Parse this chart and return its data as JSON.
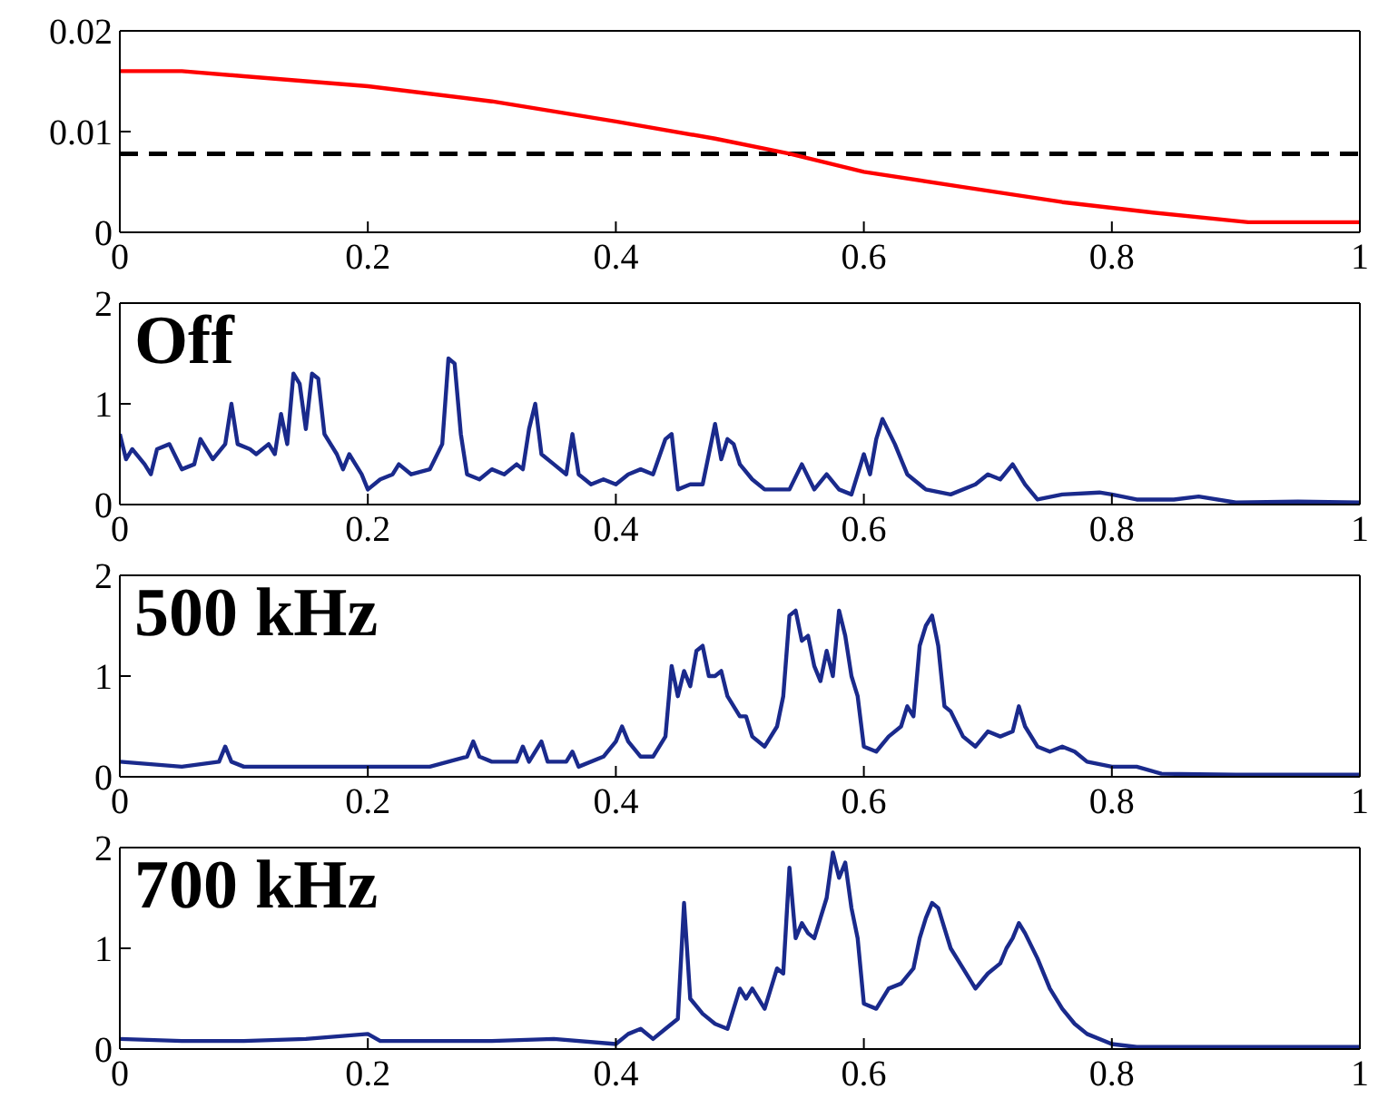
{
  "chart_data": [
    {
      "type": "line",
      "x": [
        0,
        0.05,
        0.1,
        0.2,
        0.3,
        0.4,
        0.48,
        0.54,
        0.6,
        0.68,
        0.76,
        0.83,
        0.91,
        1
      ],
      "series": [
        {
          "color": "#ff0000",
          "values": [
            0.016,
            0.016,
            0.0155,
            0.0145,
            0.013,
            0.011,
            0.0093,
            0.0078,
            0.006,
            0.0045,
            0.003,
            0.002,
            0.001,
            0.001
          ]
        }
      ],
      "ref_lines": [
        {
          "axis": "y",
          "value": 0.0078,
          "color": "#000000",
          "line_style": "dashed"
        }
      ],
      "xlim": [
        0,
        1
      ],
      "xticks": [
        0,
        0.2,
        0.4,
        0.6,
        0.8,
        1
      ],
      "ylim": [
        0,
        0.02
      ],
      "yticks": [
        0,
        0.01,
        0.02
      ],
      "grid": false,
      "legend": false,
      "marker": "none",
      "line_style": "solid"
    },
    {
      "type": "line",
      "annotations": [
        "Off"
      ],
      "x": [
        0,
        0.005,
        0.01,
        0.02,
        0.025,
        0.03,
        0.04,
        0.05,
        0.06,
        0.065,
        0.075,
        0.085,
        0.09,
        0.095,
        0.105,
        0.11,
        0.12,
        0.125,
        0.13,
        0.135,
        0.14,
        0.145,
        0.15,
        0.155,
        0.16,
        0.165,
        0.175,
        0.18,
        0.185,
        0.195,
        0.2,
        0.21,
        0.22,
        0.225,
        0.235,
        0.25,
        0.26,
        0.265,
        0.27,
        0.275,
        0.28,
        0.29,
        0.3,
        0.31,
        0.32,
        0.325,
        0.33,
        0.335,
        0.34,
        0.35,
        0.36,
        0.365,
        0.37,
        0.38,
        0.39,
        0.4,
        0.41,
        0.42,
        0.43,
        0.44,
        0.445,
        0.45,
        0.46,
        0.47,
        0.48,
        0.485,
        0.49,
        0.495,
        0.5,
        0.51,
        0.52,
        0.54,
        0.55,
        0.56,
        0.57,
        0.58,
        0.59,
        0.6,
        0.605,
        0.61,
        0.615,
        0.625,
        0.635,
        0.65,
        0.67,
        0.69,
        0.7,
        0.71,
        0.72,
        0.73,
        0.74,
        0.76,
        0.79,
        0.8,
        0.82,
        0.85,
        0.87,
        0.9,
        0.95,
        1
      ],
      "series": [
        {
          "color": "#1a2a8c",
          "values": [
            0.7,
            0.45,
            0.55,
            0.4,
            0.3,
            0.55,
            0.6,
            0.35,
            0.4,
            0.65,
            0.45,
            0.6,
            1.0,
            0.6,
            0.55,
            0.5,
            0.6,
            0.5,
            0.9,
            0.6,
            1.3,
            1.2,
            0.75,
            1.3,
            1.25,
            0.7,
            0.5,
            0.35,
            0.5,
            0.3,
            0.15,
            0.25,
            0.3,
            0.4,
            0.3,
            0.35,
            0.6,
            1.45,
            1.4,
            0.7,
            0.3,
            0.25,
            0.35,
            0.3,
            0.4,
            0.35,
            0.75,
            1.0,
            0.5,
            0.4,
            0.3,
            0.7,
            0.3,
            0.2,
            0.25,
            0.2,
            0.3,
            0.35,
            0.3,
            0.65,
            0.7,
            0.15,
            0.2,
            0.2,
            0.8,
            0.45,
            0.65,
            0.6,
            0.4,
            0.25,
            0.15,
            0.15,
            0.4,
            0.15,
            0.3,
            0.15,
            0.1,
            0.5,
            0.3,
            0.65,
            0.85,
            0.6,
            0.3,
            0.15,
            0.1,
            0.2,
            0.3,
            0.25,
            0.4,
            0.2,
            0.05,
            0.1,
            0.12,
            0.1,
            0.05,
            0.05,
            0.08,
            0.02,
            0.03,
            0.02
          ]
        }
      ],
      "xlim": [
        0,
        1
      ],
      "xticks": [
        0,
        0.2,
        0.4,
        0.6,
        0.8,
        1
      ],
      "ylim": [
        0,
        2
      ],
      "yticks": [
        0,
        1,
        2
      ],
      "grid": false,
      "legend": false,
      "marker": "none",
      "line_style": "solid"
    },
    {
      "type": "line",
      "annotations": [
        "500 kHz"
      ],
      "x": [
        0,
        0.05,
        0.08,
        0.085,
        0.09,
        0.1,
        0.15,
        0.2,
        0.25,
        0.28,
        0.285,
        0.29,
        0.3,
        0.32,
        0.325,
        0.33,
        0.34,
        0.345,
        0.36,
        0.365,
        0.37,
        0.39,
        0.4,
        0.405,
        0.41,
        0.42,
        0.43,
        0.44,
        0.445,
        0.45,
        0.455,
        0.46,
        0.465,
        0.47,
        0.475,
        0.48,
        0.485,
        0.49,
        0.5,
        0.505,
        0.51,
        0.52,
        0.53,
        0.535,
        0.54,
        0.545,
        0.55,
        0.555,
        0.56,
        0.565,
        0.57,
        0.575,
        0.58,
        0.585,
        0.59,
        0.595,
        0.6,
        0.61,
        0.62,
        0.63,
        0.635,
        0.64,
        0.645,
        0.65,
        0.655,
        0.66,
        0.665,
        0.67,
        0.68,
        0.69,
        0.7,
        0.71,
        0.72,
        0.725,
        0.73,
        0.74,
        0.75,
        0.76,
        0.77,
        0.78,
        0.8,
        0.82,
        0.84,
        0.9,
        1
      ],
      "series": [
        {
          "color": "#1a2a8c",
          "values": [
            0.15,
            0.1,
            0.15,
            0.3,
            0.15,
            0.1,
            0.1,
            0.1,
            0.1,
            0.2,
            0.35,
            0.2,
            0.15,
            0.15,
            0.3,
            0.15,
            0.35,
            0.15,
            0.15,
            0.25,
            0.1,
            0.2,
            0.35,
            0.5,
            0.35,
            0.2,
            0.2,
            0.4,
            1.1,
            0.8,
            1.05,
            0.9,
            1.25,
            1.3,
            1.0,
            1.0,
            1.05,
            0.8,
            0.6,
            0.6,
            0.4,
            0.3,
            0.5,
            0.8,
            1.6,
            1.65,
            1.35,
            1.4,
            1.1,
            0.95,
            1.25,
            1.0,
            1.65,
            1.4,
            1.0,
            0.8,
            0.3,
            0.25,
            0.4,
            0.5,
            0.7,
            0.6,
            1.3,
            1.5,
            1.6,
            1.3,
            0.7,
            0.65,
            0.4,
            0.3,
            0.45,
            0.4,
            0.45,
            0.7,
            0.5,
            0.3,
            0.25,
            0.3,
            0.25,
            0.15,
            0.1,
            0.1,
            0.03,
            0.02,
            0.02
          ]
        }
      ],
      "xlim": [
        0,
        1
      ],
      "xticks": [
        0,
        0.2,
        0.4,
        0.6,
        0.8,
        1
      ],
      "ylim": [
        0,
        2
      ],
      "yticks": [
        0,
        1,
        2
      ],
      "grid": false,
      "legend": false,
      "marker": "none",
      "line_style": "solid"
    },
    {
      "type": "line",
      "annotations": [
        "700 kHz"
      ],
      "x": [
        0,
        0.05,
        0.1,
        0.15,
        0.2,
        0.21,
        0.3,
        0.35,
        0.4,
        0.41,
        0.42,
        0.43,
        0.44,
        0.45,
        0.455,
        0.46,
        0.47,
        0.48,
        0.49,
        0.5,
        0.505,
        0.51,
        0.52,
        0.53,
        0.535,
        0.54,
        0.545,
        0.55,
        0.555,
        0.56,
        0.565,
        0.57,
        0.575,
        0.58,
        0.585,
        0.59,
        0.595,
        0.6,
        0.61,
        0.62,
        0.63,
        0.64,
        0.645,
        0.65,
        0.655,
        0.66,
        0.665,
        0.67,
        0.68,
        0.69,
        0.7,
        0.71,
        0.715,
        0.72,
        0.725,
        0.73,
        0.74,
        0.75,
        0.76,
        0.77,
        0.78,
        0.8,
        0.82,
        0.83,
        1
      ],
      "series": [
        {
          "color": "#1a2a8c",
          "values": [
            0.1,
            0.08,
            0.08,
            0.1,
            0.15,
            0.08,
            0.08,
            0.1,
            0.05,
            0.15,
            0.2,
            0.1,
            0.2,
            0.3,
            1.45,
            0.5,
            0.35,
            0.25,
            0.2,
            0.6,
            0.5,
            0.6,
            0.4,
            0.8,
            0.75,
            1.8,
            1.1,
            1.25,
            1.15,
            1.1,
            1.3,
            1.5,
            1.95,
            1.7,
            1.85,
            1.4,
            1.1,
            0.45,
            0.4,
            0.6,
            0.65,
            0.8,
            1.1,
            1.3,
            1.45,
            1.4,
            1.2,
            1.0,
            0.8,
            0.6,
            0.75,
            0.85,
            1.0,
            1.1,
            1.25,
            1.15,
            0.9,
            0.6,
            0.4,
            0.25,
            0.15,
            0.05,
            0.02,
            0.02,
            0.02
          ]
        }
      ],
      "xlim": [
        0,
        1
      ],
      "xticks": [
        0,
        0.2,
        0.4,
        0.6,
        0.8,
        1
      ],
      "ylim": [
        0,
        2
      ],
      "yticks": [
        0,
        1,
        2
      ],
      "grid": false,
      "legend": false,
      "marker": "none",
      "line_style": "solid"
    }
  ]
}
